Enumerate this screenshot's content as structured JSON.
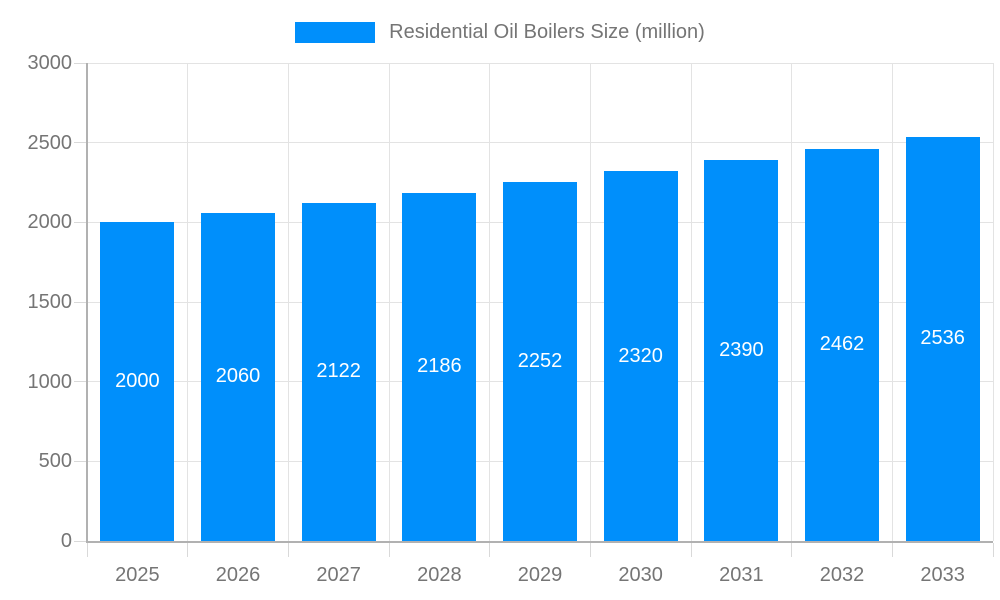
{
  "legend": {
    "label": "Residential Oil Boilers Size (million)",
    "swatch_color": "#008FFB"
  },
  "chart_data": {
    "type": "bar",
    "title": "Residential Oil Boilers Size (million)",
    "series_name": "Residential Oil Boilers Size (million)",
    "categories": [
      "2025",
      "2026",
      "2027",
      "2028",
      "2029",
      "2030",
      "2031",
      "2032",
      "2033"
    ],
    "values": [
      2000,
      2060,
      2122,
      2186,
      2252,
      2320,
      2390,
      2462,
      2536
    ],
    "xlabel": "",
    "ylabel": "",
    "ylim": [
      0,
      3000
    ],
    "ytick_step": 500,
    "ytick_labels": [
      "0",
      "500",
      "1000",
      "1500",
      "2000",
      "2500",
      "3000"
    ],
    "grid": true,
    "legend_position": "top",
    "bar_color": "#008FFB",
    "value_label_color": "#ffffff",
    "axis_text_color": "#757575",
    "axis_line_color": "#b1b1b1",
    "gridline_color": "#e3e3e3"
  }
}
